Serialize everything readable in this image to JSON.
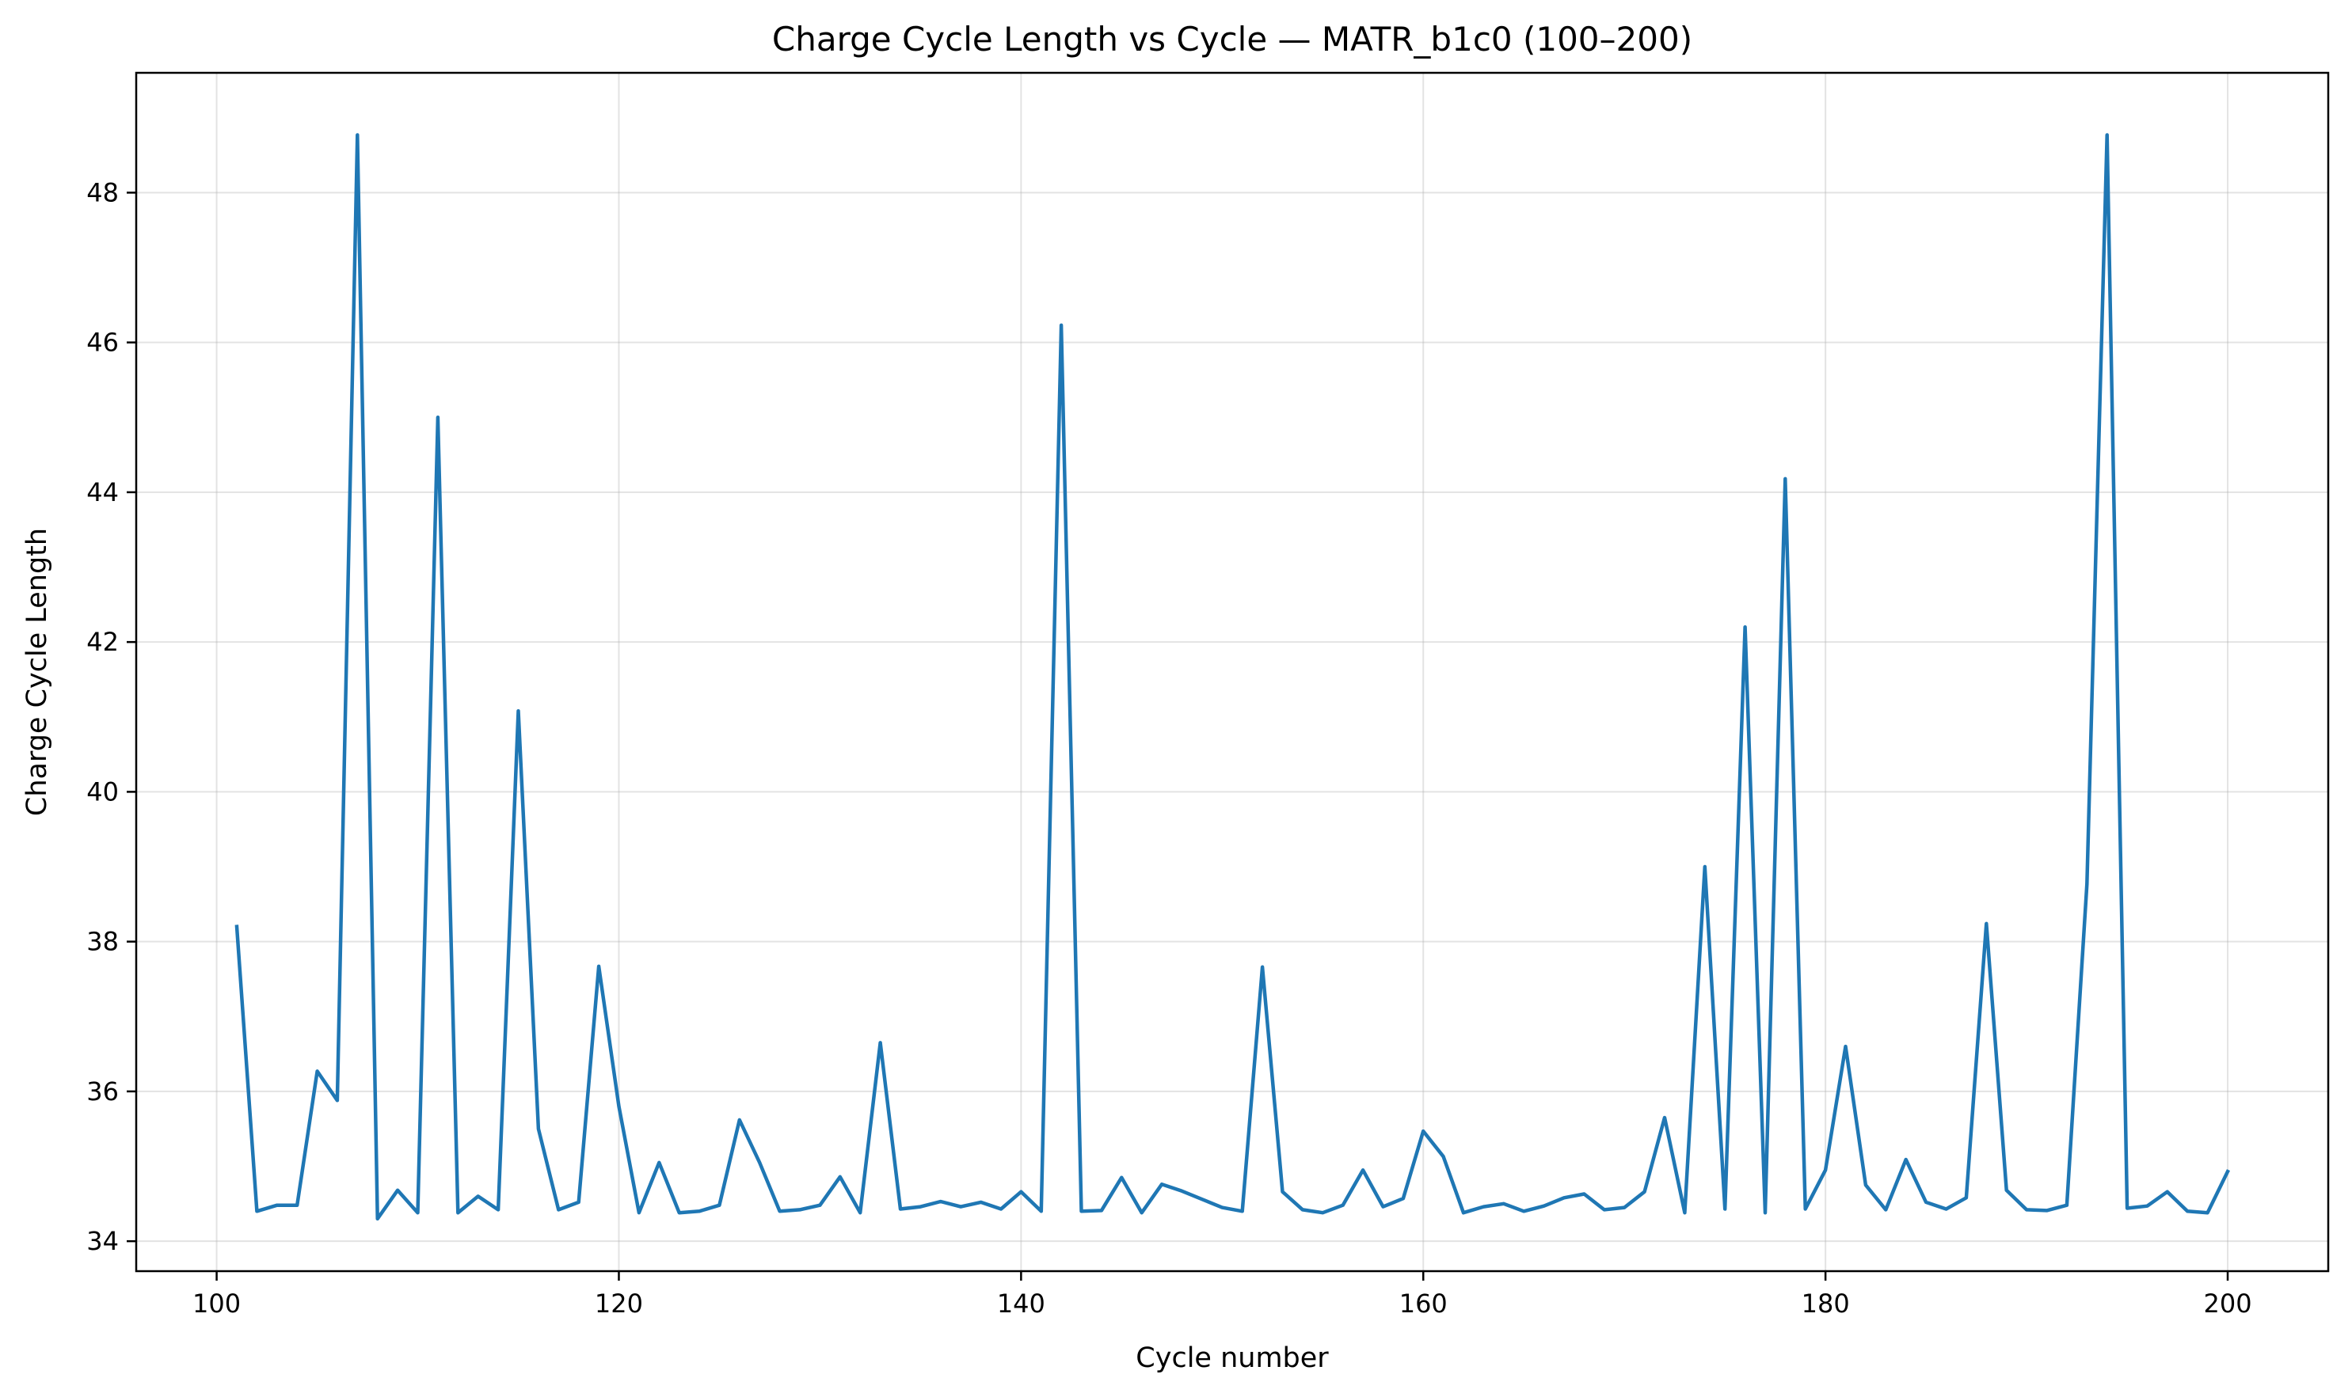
{
  "chart_data": {
    "type": "line",
    "title": "Charge Cycle Length vs Cycle — MATR_b1c0 (100–200)",
    "xlabel": "Cycle number",
    "ylabel": "Charge Cycle Length",
    "xlim": [
      96,
      205
    ],
    "ylim": [
      33.6,
      49.6
    ],
    "xticks": [
      100,
      120,
      140,
      160,
      180,
      200
    ],
    "yticks": [
      34,
      36,
      38,
      40,
      42,
      44,
      46,
      48
    ],
    "grid": true,
    "series": [
      {
        "color": "#1f77b4",
        "x": [
          101,
          102,
          103,
          104,
          105,
          106,
          107,
          108,
          109,
          110,
          111,
          112,
          113,
          114,
          115,
          116,
          117,
          118,
          119,
          120,
          121,
          122,
          123,
          124,
          125,
          126,
          127,
          128,
          129,
          130,
          131,
          132,
          133,
          134,
          135,
          136,
          137,
          138,
          139,
          140,
          141,
          142,
          143,
          144,
          145,
          146,
          147,
          148,
          149,
          150,
          151,
          152,
          153,
          154,
          155,
          156,
          157,
          158,
          159,
          160,
          161,
          162,
          163,
          164,
          165,
          166,
          167,
          168,
          169,
          170,
          171,
          172,
          173,
          174,
          175,
          176,
          177,
          178,
          179,
          180,
          181,
          182,
          183,
          184,
          185,
          186,
          187,
          188,
          189,
          190,
          191,
          192,
          193,
          194,
          195,
          196,
          197,
          198,
          199,
          200
        ],
        "y": [
          38.2,
          34.4,
          34.48,
          34.48,
          36.27,
          35.88,
          48.77,
          34.3,
          34.68,
          34.38,
          45.0,
          34.38,
          34.6,
          34.42,
          41.08,
          35.5,
          34.42,
          34.52,
          37.67,
          35.8,
          34.38,
          35.05,
          34.38,
          34.4,
          34.48,
          35.62,
          35.05,
          34.4,
          34.42,
          34.48,
          34.86,
          34.38,
          36.65,
          34.43,
          34.46,
          34.53,
          34.46,
          34.52,
          34.43,
          34.66,
          34.4,
          46.23,
          34.4,
          34.41,
          34.85,
          34.38,
          34.76,
          34.67,
          34.56,
          34.45,
          34.4,
          37.66,
          34.66,
          34.42,
          34.38,
          34.48,
          34.95,
          34.46,
          34.57,
          35.47,
          35.13,
          34.38,
          34.46,
          34.5,
          34.4,
          34.47,
          34.58,
          34.63,
          34.42,
          34.45,
          34.66,
          35.65,
          34.38,
          39.0,
          34.43,
          42.2,
          34.38,
          44.18,
          34.43,
          34.95,
          36.6,
          34.75,
          34.42,
          35.09,
          34.52,
          34.43,
          34.58,
          38.24,
          34.68,
          34.42,
          34.41,
          34.48,
          38.77,
          48.77,
          34.44,
          34.47,
          34.66,
          34.4,
          34.38,
          34.93
        ]
      }
    ]
  }
}
